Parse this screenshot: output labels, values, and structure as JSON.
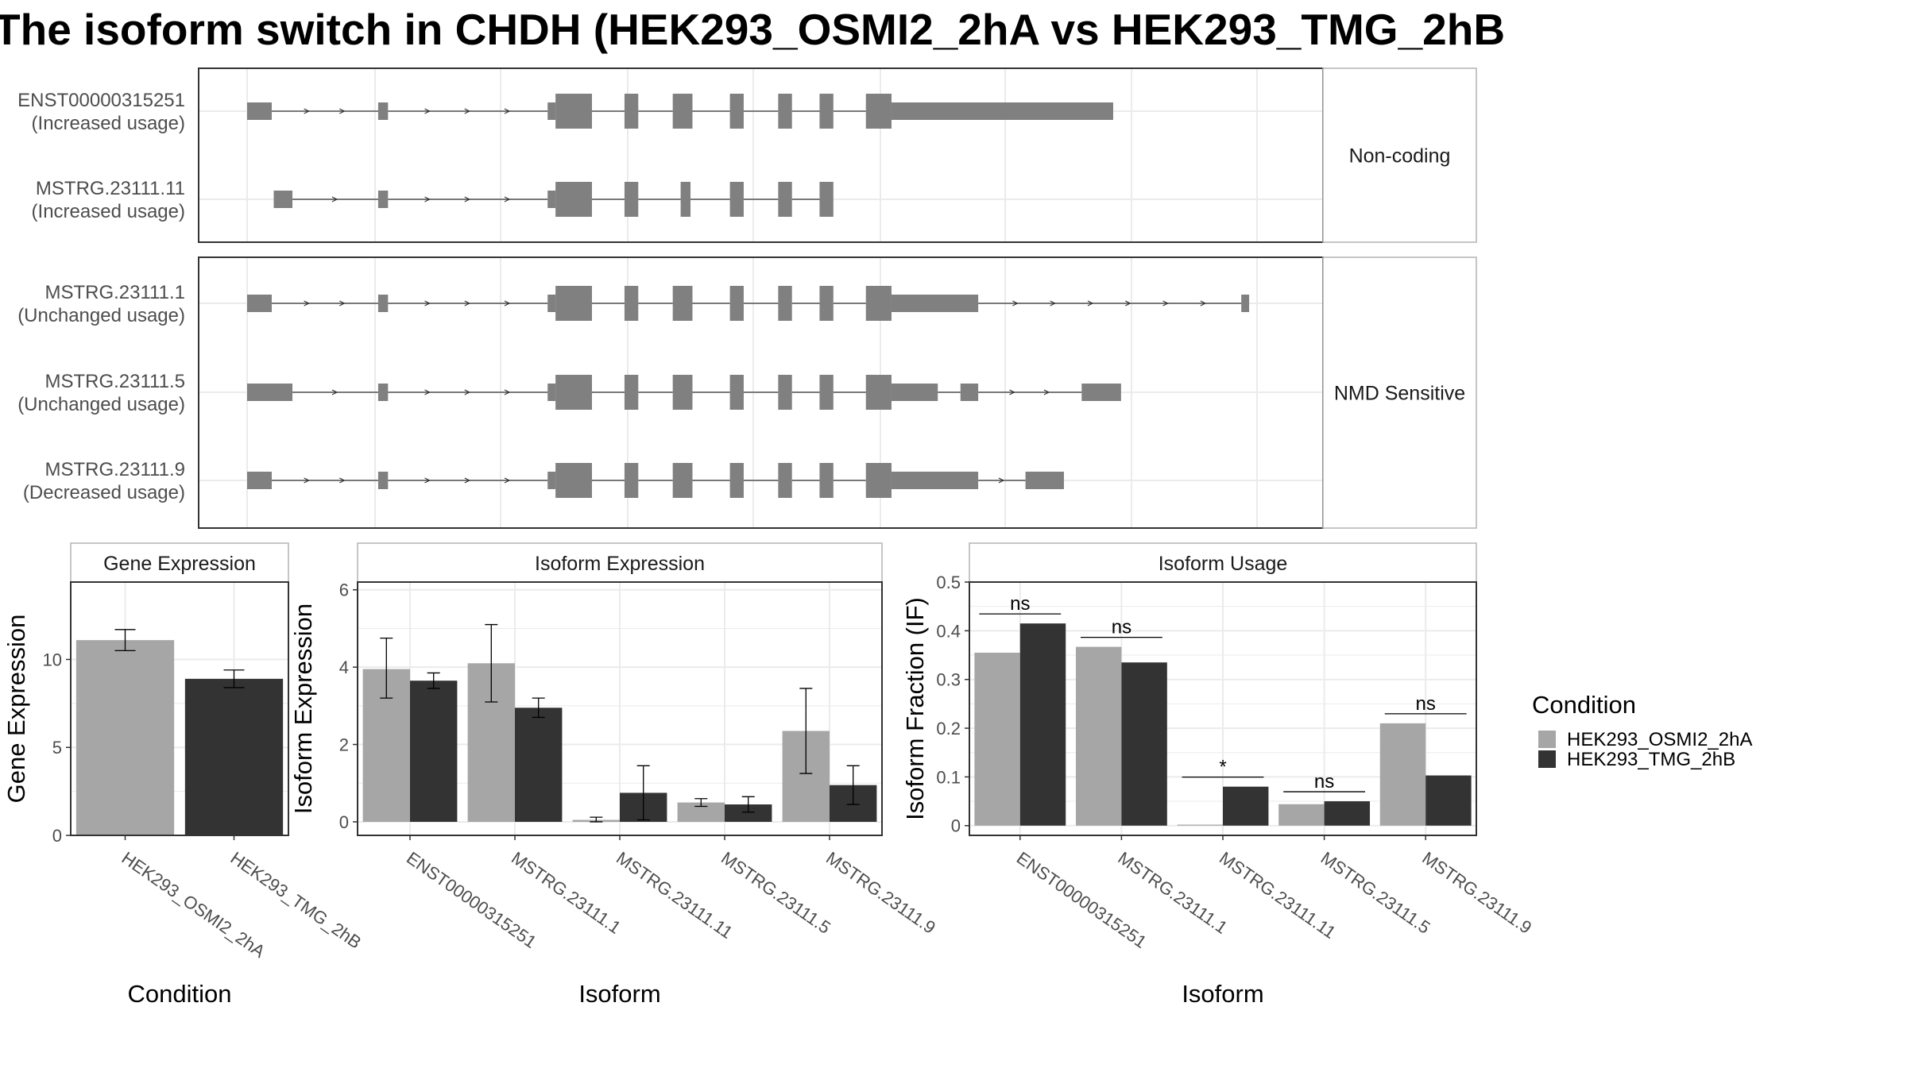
{
  "title": "The isoform switch in CHDH (HEK293_OSMI2_2hA vs HEK293_TMG_2hB",
  "colors": {
    "cond_a": "#a6a6a6",
    "cond_b": "#333333",
    "exon": "#808080",
    "grid": "#ebebeb",
    "strip_border": "#b3b3b3"
  },
  "gene_structure": {
    "x_range": [
      0,
      1000
    ],
    "groups": [
      {
        "label": "Non-coding",
        "isoforms": [
          {
            "name": "ENST00000315251",
            "status": "(Increased usage)",
            "exons": [
              [
                0,
                25,
                "s"
              ],
              [
                133,
                143,
                "s"
              ],
              [
                305,
                313,
                "s"
              ],
              [
                313,
                350,
                "t"
              ],
              [
                383,
                397,
                "t"
              ],
              [
                432,
                452,
                "t"
              ],
              [
                490,
                504,
                "t"
              ],
              [
                539,
                553,
                "t"
              ],
              [
                581,
                595,
                "t"
              ],
              [
                628,
                654,
                "t"
              ],
              [
                654,
                879,
                "s"
              ]
            ]
          },
          {
            "name": "MSTRG.23111.11",
            "status": "(Increased usage)",
            "exons": [
              [
                27,
                46,
                "s"
              ],
              [
                133,
                143,
                "s"
              ],
              [
                305,
                313,
                "s"
              ],
              [
                313,
                350,
                "t"
              ],
              [
                383,
                397,
                "t"
              ],
              [
                440,
                450,
                "t"
              ],
              [
                490,
                504,
                "t"
              ],
              [
                539,
                553,
                "t"
              ],
              [
                581,
                595,
                "t"
              ]
            ]
          }
        ]
      },
      {
        "label": "NMD Sensitive",
        "isoforms": [
          {
            "name": "MSTRG.23111.1",
            "status": "(Unchanged usage)",
            "exons": [
              [
                0,
                25,
                "s"
              ],
              [
                133,
                143,
                "s"
              ],
              [
                305,
                313,
                "s"
              ],
              [
                313,
                350,
                "t"
              ],
              [
                383,
                397,
                "t"
              ],
              [
                432,
                452,
                "t"
              ],
              [
                490,
                504,
                "t"
              ],
              [
                539,
                553,
                "t"
              ],
              [
                581,
                595,
                "t"
              ],
              [
                628,
                654,
                "t"
              ],
              [
                654,
                742,
                "s"
              ],
              [
                1009,
                1017,
                "s"
              ]
            ]
          },
          {
            "name": "MSTRG.23111.5",
            "status": "(Unchanged usage)",
            "exons": [
              [
                0,
                46,
                "s"
              ],
              [
                133,
                143,
                "s"
              ],
              [
                305,
                313,
                "s"
              ],
              [
                313,
                350,
                "t"
              ],
              [
                383,
                397,
                "t"
              ],
              [
                432,
                452,
                "t"
              ],
              [
                490,
                504,
                "t"
              ],
              [
                539,
                553,
                "t"
              ],
              [
                581,
                595,
                "t"
              ],
              [
                628,
                654,
                "t"
              ],
              [
                654,
                701,
                "s"
              ],
              [
                724,
                742,
                "s"
              ],
              [
                847,
                887,
                "s"
              ]
            ]
          },
          {
            "name": "MSTRG.23111.9",
            "status": "(Decreased usage)",
            "exons": [
              [
                0,
                25,
                "s"
              ],
              [
                133,
                143,
                "s"
              ],
              [
                305,
                313,
                "s"
              ],
              [
                313,
                350,
                "t"
              ],
              [
                383,
                397,
                "t"
              ],
              [
                432,
                452,
                "t"
              ],
              [
                490,
                504,
                "t"
              ],
              [
                539,
                553,
                "t"
              ],
              [
                581,
                595,
                "t"
              ],
              [
                628,
                654,
                "t"
              ],
              [
                654,
                742,
                "s"
              ],
              [
                790,
                829,
                "s"
              ]
            ]
          }
        ]
      }
    ]
  },
  "chart_data": [
    {
      "type": "bar",
      "title": "Gene Expression",
      "xlabel": "Condition",
      "ylabel": "Gene Expression",
      "ylim": [
        0,
        14.4
      ],
      "yticks": [
        0,
        5,
        10
      ],
      "categories": [
        "HEK293_OSMI2_2hA",
        "HEK293_TMG_2hB"
      ],
      "values": [
        11.1,
        8.9
      ],
      "errors": [
        [
          10.5,
          11.7
        ],
        [
          8.4,
          9.4
        ]
      ]
    },
    {
      "type": "bar",
      "title": "Isoform Expression",
      "xlabel": "Isoform",
      "ylabel": "Isoform Expression",
      "ylim": [
        -0.35,
        6.2
      ],
      "yticks": [
        0,
        2,
        4,
        6
      ],
      "categories": [
        "ENST00000315251",
        "MSTRG.23111.1",
        "MSTRG.23111.11",
        "MSTRG.23111.5",
        "MSTRG.23111.9"
      ],
      "series": [
        {
          "name": "HEK293_OSMI2_2hA",
          "values": [
            3.95,
            4.1,
            0.05,
            0.5,
            2.35
          ],
          "errors": [
            [
              3.2,
              4.75
            ],
            [
              3.1,
              5.1
            ],
            [
              0.0,
              0.12
            ],
            [
              0.4,
              0.6
            ],
            [
              1.25,
              3.45
            ]
          ]
        },
        {
          "name": "HEK293_TMG_2hB",
          "values": [
            3.65,
            2.95,
            0.75,
            0.45,
            0.95
          ],
          "errors": [
            [
              3.45,
              3.85
            ],
            [
              2.7,
              3.2
            ],
            [
              0.05,
              1.45
            ],
            [
              0.25,
              0.65
            ],
            [
              0.45,
              1.45
            ]
          ]
        }
      ]
    },
    {
      "type": "bar",
      "title": "Isoform Usage",
      "xlabel": "Isoform",
      "ylabel": "Isoform Fraction (IF)",
      "ylim": [
        -0.02,
        0.5
      ],
      "yticks": [
        0.0,
        0.1,
        0.2,
        0.3,
        0.4,
        0.5
      ],
      "categories": [
        "ENST00000315251",
        "MSTRG.23111.1",
        "MSTRG.23111.11",
        "MSTRG.23111.5",
        "MSTRG.23111.9"
      ],
      "series": [
        {
          "name": "HEK293_OSMI2_2hA",
          "values": [
            0.355,
            0.367,
            0.002,
            0.044,
            0.21
          ]
        },
        {
          "name": "HEK293_TMG_2hB",
          "values": [
            0.415,
            0.335,
            0.08,
            0.05,
            0.103
          ]
        }
      ],
      "significance": [
        "ns",
        "ns",
        "*",
        "ns",
        "ns"
      ]
    }
  ],
  "legend": {
    "title": "Condition",
    "entries": [
      "HEK293_OSMI2_2hA",
      "HEK293_TMG_2hB"
    ]
  }
}
